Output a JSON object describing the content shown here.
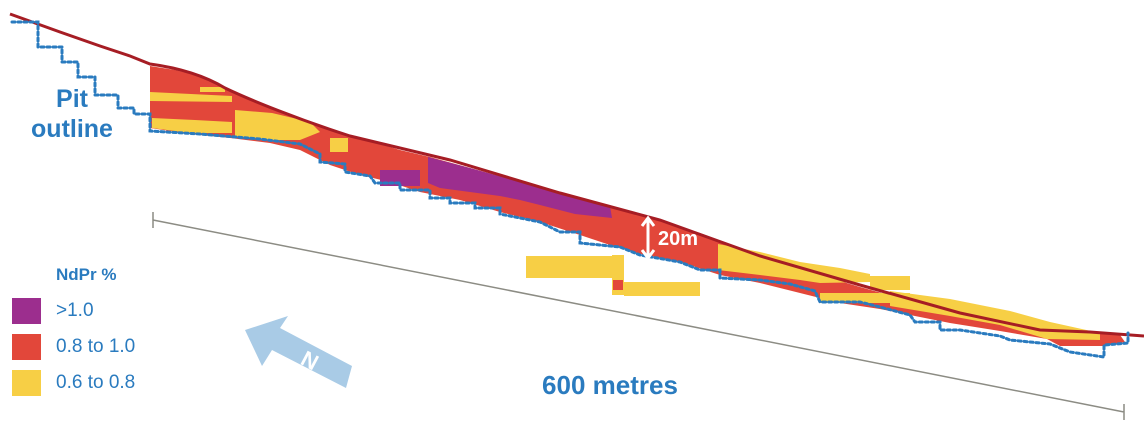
{
  "pit_label": {
    "line1": "Pit",
    "line2": "outline"
  },
  "legend": {
    "title": "NdPr %",
    "items": [
      {
        "label": ">1.0",
        "color": "#9c2e8e"
      },
      {
        "label": "0.8 to 1.0",
        "color": "#e2473a"
      },
      {
        "label": "0.6 to 0.8",
        "color": "#f7cf45"
      }
    ]
  },
  "scale_bar": {
    "label": "600 metres"
  },
  "depth_marker": {
    "label": "20m"
  },
  "north_arrow": {
    "letter": "N",
    "icon": "north-arrow-icon"
  },
  "colors": {
    "surface_line": "#a61d24",
    "pit_outline": "#2a7bbf",
    "scale_line": "#8c8c84",
    "arrow": "#a9cbe6",
    "label_blue": "#2a7bbf"
  }
}
